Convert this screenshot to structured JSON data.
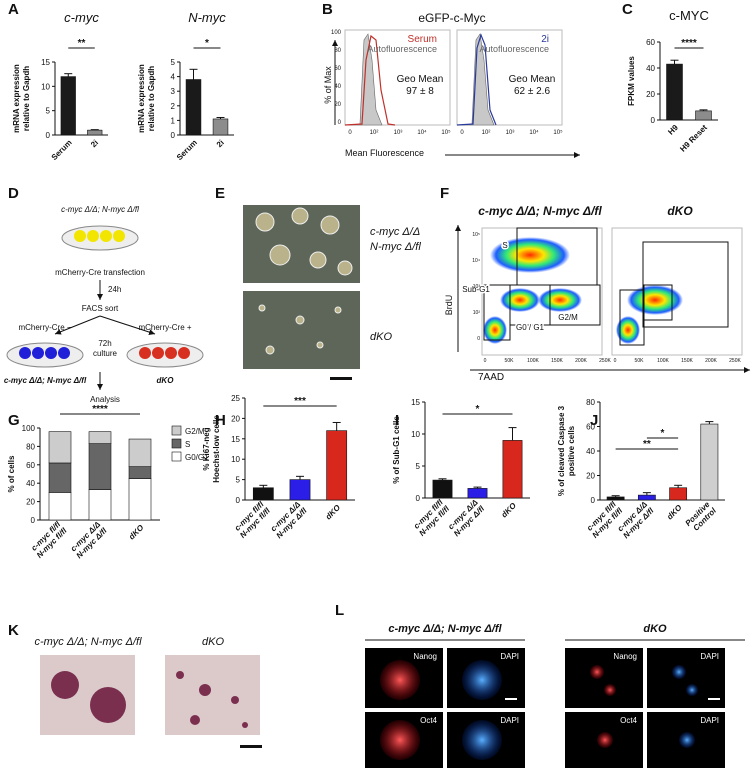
{
  "panels": {
    "letters": [
      "A",
      "B",
      "C",
      "D",
      "E",
      "F",
      "G",
      "H",
      "I",
      "J",
      "K",
      "L"
    ],
    "B": {
      "title": "eGFP-c-Myc",
      "y_label": "% of Max",
      "x_label": "Mean Fluorescence",
      "y_ticks": [
        "100",
        "80",
        "60",
        "40",
        "20",
        "0"
      ],
      "x_ticks": [
        "0",
        "10²",
        "10³",
        "10⁴",
        "10⁵"
      ],
      "plots": [
        {
          "sample": "Serum",
          "control": "Autofluorescence",
          "stat": "Geo Mean",
          "value": "97 ± 8"
        },
        {
          "sample": "2i",
          "control": "Autofluorescence",
          "stat": "Geo Mean",
          "value": "62 ± 2.6"
        }
      ]
    },
    "D": {
      "start": "c-myc Δ/Δ; N-myc Δ/fl",
      "step1": "mCherry-Cre transfection",
      "time1": "24h",
      "step2": "FACS sort",
      "neg": "mCherry-Cre −",
      "pos": "mCherry-Cre +",
      "time2": "72h",
      "time2b": "culture",
      "neg_label": "c-myc Δ/Δ; N-myc Δ/fl",
      "pos_label": "dKO",
      "end": "Analysis"
    },
    "E": {
      "labels": [
        "c-myc Δ/Δ",
        "N-myc Δ/fl",
        "dKO"
      ]
    },
    "F": {
      "titles": [
        "c-myc Δ/Δ; N-myc Δ/fl",
        "dKO"
      ],
      "gates": [
        "S",
        "Sub-G1",
        "G0 / G1",
        "G2/M"
      ],
      "y_label": "BrdU",
      "x_label": "7AAD",
      "y_ticks": [
        "10⁵",
        "10⁴",
        "10³",
        "10²",
        "0"
      ],
      "x_ticks": [
        "0",
        "50K",
        "100K",
        "150K",
        "200K",
        "250K"
      ]
    },
    "K": {
      "labels": [
        "c-myc Δ/Δ; N-myc Δ/fl",
        "dKO"
      ]
    },
    "L": {
      "headers": [
        "c-myc Δ/Δ; N-myc Δ/fl",
        "dKO"
      ],
      "stains": [
        [
          "Nanog",
          "DAPI"
        ],
        [
          "Oct4",
          "DAPI"
        ]
      ]
    }
  },
  "chart_data": [
    {
      "type": "bar",
      "title": "c-myc",
      "ylabel": [
        "mRNA expression",
        "relative to Gapdh"
      ],
      "categories": [
        [
          "Serum"
        ],
        [
          "2i"
        ]
      ],
      "values": [
        12,
        1
      ],
      "errors": [
        0.6,
        0.1
      ],
      "colors": [
        "#1a1a1a",
        "#8c8c8c"
      ],
      "ylim": [
        0,
        15
      ],
      "yticks": [
        0,
        5,
        10,
        15
      ],
      "significance": [
        "**"
      ]
    },
    {
      "type": "bar",
      "title": "N-myc",
      "ylabel": [
        "mRNA expression",
        "relative to Gapdh"
      ],
      "categories": [
        [
          "Serum"
        ],
        [
          "2i"
        ]
      ],
      "values": [
        3.8,
        1.1
      ],
      "errors": [
        0.7,
        0.1
      ],
      "colors": [
        "#1a1a1a",
        "#8c8c8c"
      ],
      "ylim": [
        0,
        5
      ],
      "yticks": [
        0,
        1,
        2,
        3,
        4,
        5
      ],
      "significance": [
        "*"
      ]
    },
    {
      "type": "bar",
      "title": "c-MYC",
      "ylabel": [
        "FPKM values"
      ],
      "categories": [
        [
          "H9"
        ],
        [
          "H9 Reset"
        ]
      ],
      "values": [
        43,
        7
      ],
      "errors": [
        3,
        0.8
      ],
      "colors": [
        "#1a1a1a",
        "#8c8c8c"
      ],
      "ylim": [
        0,
        60
      ],
      "yticks": [
        0,
        20,
        40,
        60
      ],
      "significance": [
        "****"
      ]
    },
    {
      "type": "stacked_bar",
      "ylabel": [
        "% of cells"
      ],
      "categories": [
        [
          "c-myc fl/fl",
          "N-myc fl/fl"
        ],
        [
          "c-myc Δ/Δ",
          "N-myc Δ/fl"
        ],
        [
          "dKO"
        ]
      ],
      "series": [
        {
          "name": "G0/G1",
          "color": "#ffffff",
          "values": [
            30,
            33,
            45
          ]
        },
        {
          "name": "S",
          "color": "#666666",
          "values": [
            32,
            50,
            13
          ]
        },
        {
          "name": "G2/M",
          "color": "#cccccc",
          "values": [
            34,
            13,
            30
          ]
        }
      ],
      "ylim": [
        0,
        100
      ],
      "yticks": [
        0,
        20,
        40,
        60,
        80,
        100
      ],
      "significance": [
        "****"
      ]
    },
    {
      "type": "bar",
      "ylabel": [
        "% Ki67-neg",
        "Hoechst-low cells"
      ],
      "categories": [
        [
          "c-myc fl/fl",
          "N-myc fl/fl"
        ],
        [
          "c-myc Δ/Δ",
          "N-myc Δ/fl"
        ],
        [
          "dKO"
        ]
      ],
      "values": [
        3,
        5,
        17
      ],
      "errors": [
        0.6,
        0.8,
        2
      ],
      "colors": [
        "#111111",
        "#2b1ee6",
        "#d8281e"
      ],
      "ylim": [
        0,
        25
      ],
      "yticks": [
        0,
        5,
        10,
        15,
        20,
        25
      ],
      "significance": [
        "***"
      ]
    },
    {
      "type": "bar",
      "ylabel": [
        "% of Sub-G1 cells"
      ],
      "categories": [
        [
          "c-myc fl/fl",
          "N-myc fl/fl"
        ],
        [
          "c-myc Δ/Δ",
          "N-myc Δ/fl"
        ],
        [
          "dKO"
        ]
      ],
      "values": [
        2.8,
        1.5,
        9
      ],
      "errors": [
        0.2,
        0.2,
        2
      ],
      "colors": [
        "#111111",
        "#2b1ee6",
        "#d8281e"
      ],
      "ylim": [
        0,
        15
      ],
      "yticks": [
        0,
        5,
        10,
        15
      ],
      "significance": [
        "*"
      ]
    },
    {
      "type": "bar",
      "ylabel": [
        "% of cleaved Caspase 3",
        "positive cells"
      ],
      "categories": [
        [
          "c-myc fl/fl",
          "N-myc fl/fl"
        ],
        [
          "c-myc Δ/Δ",
          "N-myc Δ/fl"
        ],
        [
          "dKO"
        ],
        [
          "Positive",
          "Control"
        ]
      ],
      "values": [
        2.5,
        4,
        10,
        62
      ],
      "errors": [
        1,
        2,
        2,
        2
      ],
      "colors": [
        "#111111",
        "#2b1ee6",
        "#d8281e",
        "#cfcfcf"
      ],
      "ylim": [
        0,
        80
      ],
      "yticks": [
        0,
        20,
        40,
        60,
        80
      ],
      "significance": [
        "*",
        "**"
      ]
    }
  ]
}
